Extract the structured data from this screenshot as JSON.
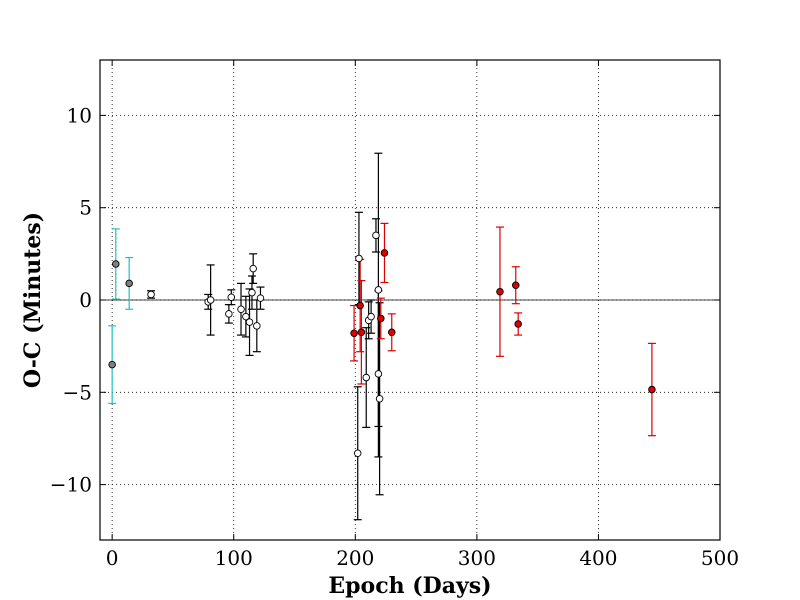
{
  "chart_data": {
    "type": "scatter",
    "xlabel": "Epoch (Days)",
    "ylabel": "O-C (Minutes)",
    "xlim": [
      -10,
      500
    ],
    "ylim": [
      -13,
      13
    ],
    "xticks": [
      0,
      100,
      200,
      300,
      400,
      500
    ],
    "yticks": [
      -10,
      -5,
      0,
      5,
      10
    ],
    "xtick_labels": [
      "0",
      "100",
      "200",
      "300",
      "400",
      "500"
    ],
    "ytick_labels": [
      "−10",
      "−5",
      "0",
      "5",
      "10"
    ],
    "grid": true,
    "reference_line_y": 0,
    "series": [
      {
        "color": "#20c0c0",
        "marker_fill": "#808080",
        "points": [
          {
            "x": 0,
            "y": -3.5,
            "err": 2.1
          },
          {
            "x": 3,
            "y": 1.95,
            "err": 1.9
          },
          {
            "x": 14,
            "y": 0.9,
            "err": 1.4
          }
        ]
      },
      {
        "color": "#000000",
        "marker_fill": "#ffffff",
        "points": [
          {
            "x": 32,
            "y": 0.3,
            "err": 0.2
          },
          {
            "x": 79,
            "y": -0.1,
            "err": 0.4
          },
          {
            "x": 81,
            "y": 0.0,
            "err": 1.9
          },
          {
            "x": 96,
            "y": -0.75,
            "err": 0.5
          },
          {
            "x": 98,
            "y": 0.15,
            "err": 0.4
          },
          {
            "x": 106,
            "y": -0.5,
            "err": 1.4
          },
          {
            "x": 110,
            "y": -0.9,
            "err": 1.1
          },
          {
            "x": 113,
            "y": -1.2,
            "err": 1.8
          },
          {
            "x": 115,
            "y": 0.4,
            "err": 0.9
          },
          {
            "x": 116,
            "y": 1.7,
            "err": 0.8
          },
          {
            "x": 119,
            "y": -1.4,
            "err": 1.4
          },
          {
            "x": 122,
            "y": 0.1,
            "err": 0.6
          },
          {
            "x": 202,
            "y": -8.3,
            "err": 3.6
          },
          {
            "x": 203,
            "y": 2.25,
            "err": 2.5
          },
          {
            "x": 209,
            "y": -4.2,
            "err": 2.7
          },
          {
            "x": 211,
            "y": -1.1,
            "err": 1.0
          },
          {
            "x": 213,
            "y": -0.9,
            "err": 0.9
          },
          {
            "x": 217,
            "y": 3.5,
            "err": 0.9
          },
          {
            "x": 219,
            "y": -4.0,
            "err": 4.5
          },
          {
            "x": 219,
            "y": 0.55,
            "err": 7.4
          },
          {
            "x": 220,
            "y": -5.35,
            "err": 5.2
          }
        ]
      },
      {
        "color": "#dd0000",
        "marker_fill": "#dd0000",
        "points": [
          {
            "x": 199,
            "y": -1.8,
            "err": 1.5
          },
          {
            "x": 204,
            "y": -0.3,
            "err": 2.5
          },
          {
            "x": 205,
            "y": -1.75,
            "err": 2.8
          },
          {
            "x": 221,
            "y": -1.0,
            "err": 1.1
          },
          {
            "x": 224,
            "y": 2.55,
            "err": 1.6
          },
          {
            "x": 230,
            "y": -1.75,
            "err": 1.0
          },
          {
            "x": 319,
            "y": 0.45,
            "err": 3.5
          },
          {
            "x": 332,
            "y": 0.8,
            "err": 1.0
          },
          {
            "x": 334,
            "y": -1.3,
            "err": 0.6
          },
          {
            "x": 444,
            "y": -4.85,
            "err": 2.5
          }
        ]
      }
    ]
  }
}
